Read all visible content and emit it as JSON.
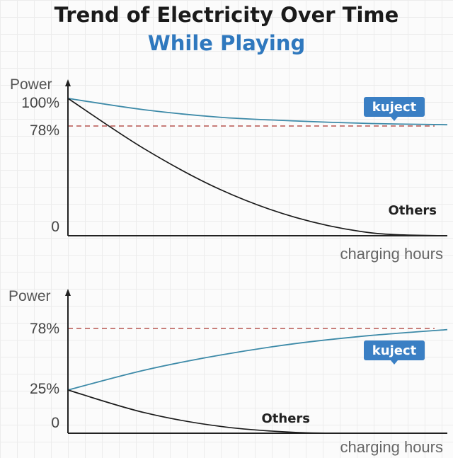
{
  "title": "Trend of Electricity Over Time",
  "subtitle": "While Playing",
  "colors": {
    "kuject": "#3d8aa8",
    "others": "#1a1a1a",
    "reference": "#b85450",
    "badge": "#3a7fc4",
    "axis": "#222222"
  },
  "chart_data": [
    {
      "type": "line",
      "ylabel": "Power",
      "xlabel": "charging hours",
      "y_tick_labels": [
        "100%",
        "78%",
        "0"
      ],
      "ylim": [
        0,
        100
      ],
      "x_range": [
        0,
        1
      ],
      "reference_line": {
        "value": 78,
        "style": "dashed"
      },
      "series": [
        {
          "name": "kuject",
          "x": [
            0,
            0.2,
            0.4,
            0.6,
            0.8,
            1.0
          ],
          "values": [
            100,
            91,
            85,
            82,
            80,
            79
          ]
        },
        {
          "name": "Others",
          "x": [
            0,
            0.2,
            0.4,
            0.6,
            0.8,
            1.0
          ],
          "values": [
            100,
            62,
            33,
            13,
            2,
            0
          ]
        }
      ]
    },
    {
      "type": "line",
      "ylabel": "Power",
      "xlabel": "charging hours",
      "y_tick_labels": [
        "78%",
        "25%",
        "0"
      ],
      "ylim": [
        0,
        100
      ],
      "x_range": [
        0,
        1
      ],
      "reference_line": {
        "value": 78,
        "style": "dashed"
      },
      "series": [
        {
          "name": "kuject",
          "x": [
            0,
            0.2,
            0.4,
            0.6,
            0.8,
            1.0
          ],
          "values": [
            25,
            42,
            55,
            65,
            72,
            77
          ]
        },
        {
          "name": "Others",
          "x": [
            0,
            0.2,
            0.4,
            0.6,
            0.8,
            1.0
          ],
          "values": [
            25,
            12,
            4,
            0.5,
            0,
            0
          ]
        }
      ]
    }
  ]
}
